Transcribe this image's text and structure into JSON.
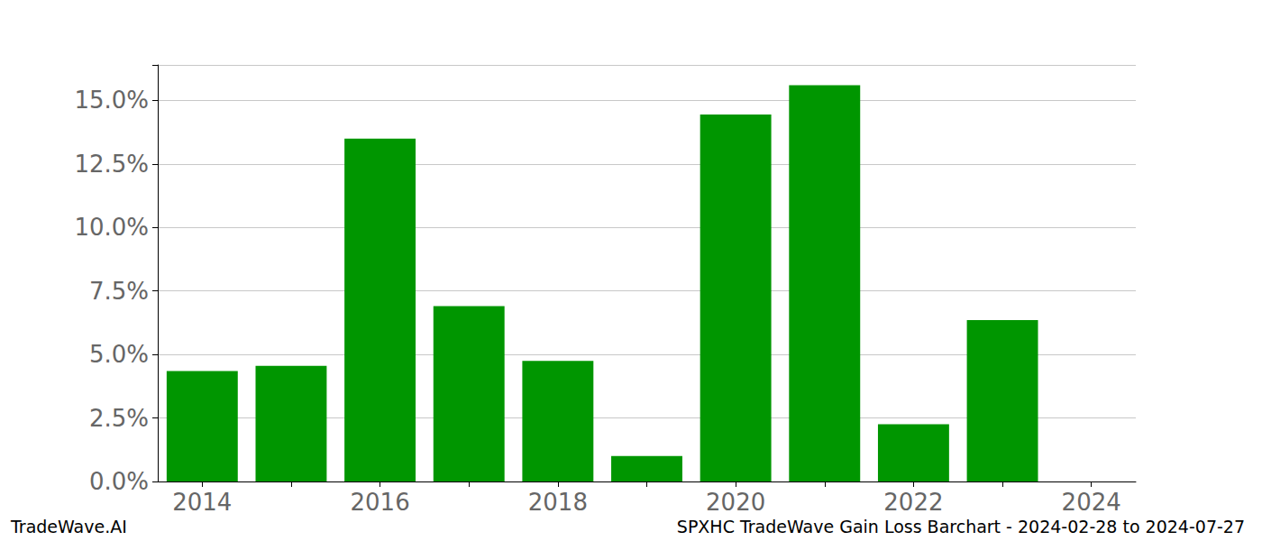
{
  "chart_data": {
    "type": "bar",
    "title": "SPXHC TradeWave Gain Loss Barchart - 2024-02-28 to 2024-07-27",
    "annotations": [
      "TradeWave.AI"
    ],
    "categories": [
      "2014",
      null,
      "2016",
      null,
      "2018",
      null,
      "2020",
      null,
      "2022",
      null,
      "2024"
    ],
    "values": [
      4.35,
      4.55,
      13.5,
      6.9,
      4.75,
      1.0,
      14.45,
      15.6,
      2.25,
      6.35,
      0
    ],
    "color": "#009600",
    "ylim": [
      0,
      16.4
    ],
    "yticks": [
      {
        "value": 0,
        "label": "0.0%"
      },
      {
        "value": 2.5,
        "label": "2.5%"
      },
      {
        "value": 5,
        "label": "5.0%"
      },
      {
        "value": 7.5,
        "label": "7.5%"
      },
      {
        "value": 10,
        "label": "10.0%"
      },
      {
        "value": 12.5,
        "label": "12.5%"
      },
      {
        "value": 15,
        "label": "15.0%"
      }
    ],
    "grid": true
  }
}
